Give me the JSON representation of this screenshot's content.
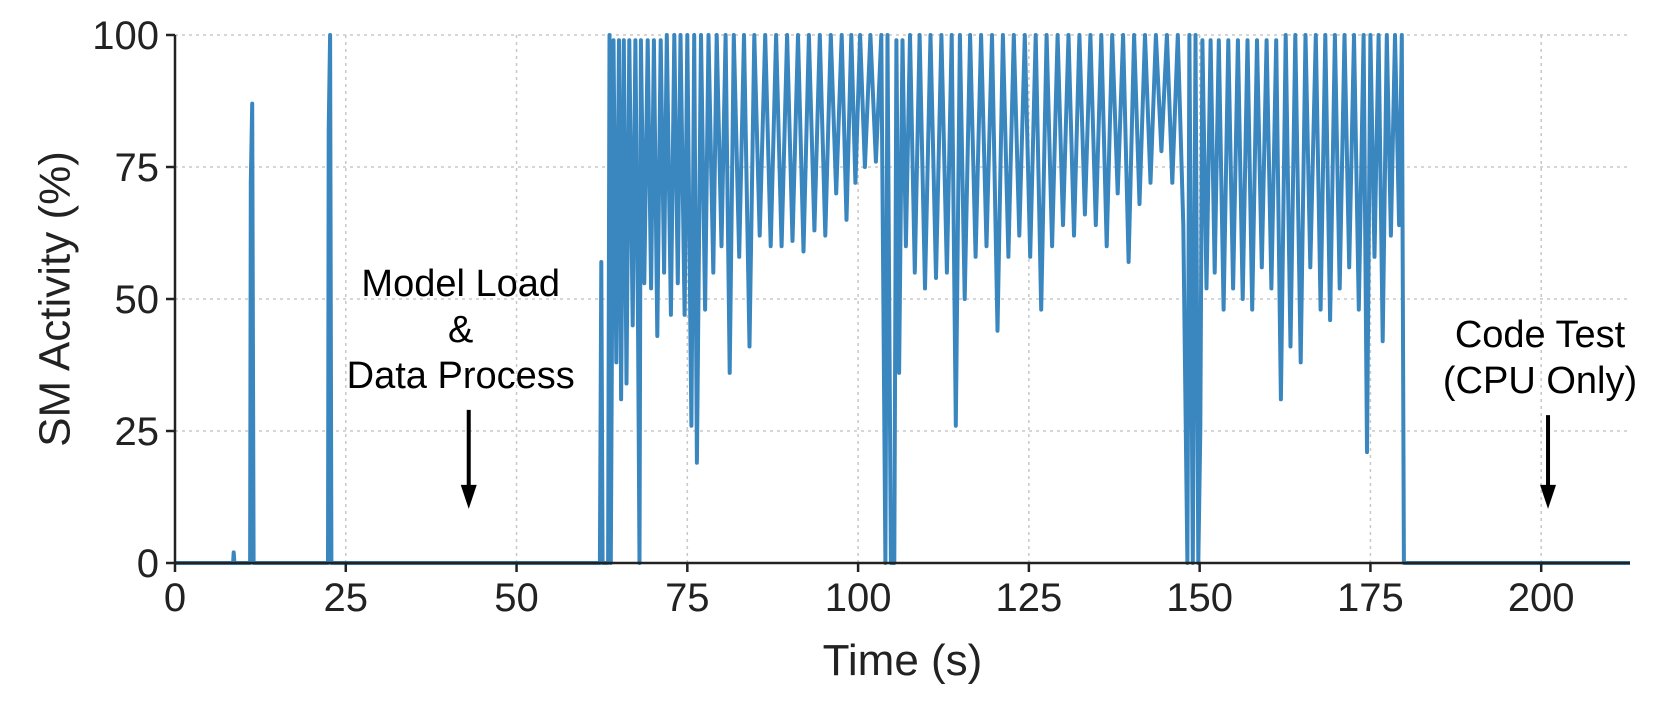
{
  "chart_data": {
    "type": "line",
    "title": "",
    "xlabel": "Time (s)",
    "ylabel": "SM Activity (%)",
    "xlim": [
      0,
      213
    ],
    "ylim": [
      0,
      100
    ],
    "xticks": [
      0,
      25,
      50,
      75,
      100,
      125,
      150,
      175,
      200
    ],
    "yticks": [
      0,
      25,
      50,
      75,
      100
    ],
    "grid": true,
    "color": "#3a86bf",
    "annotations": [
      {
        "lines": [
          "Model Load",
          "&",
          "Data Process"
        ],
        "arrow_x": 43,
        "arrow_from_y": 29,
        "arrow_to_y": 11
      },
      {
        "lines": [
          "Code Test",
          "(CPU Only)"
        ],
        "arrow_x": 201,
        "arrow_from_y": 28,
        "arrow_to_y": 11
      }
    ],
    "series": [
      {
        "name": "",
        "points": [
          [
            0,
            0
          ],
          [
            8.5,
            0
          ],
          [
            8.6,
            2
          ],
          [
            8.7,
            0
          ],
          [
            11.0,
            0
          ],
          [
            11.1,
            72
          ],
          [
            11.3,
            87
          ],
          [
            11.5,
            0
          ],
          [
            22.4,
            0
          ],
          [
            22.5,
            82
          ],
          [
            22.7,
            100
          ],
          [
            22.9,
            0
          ],
          [
            62.2,
            0
          ],
          [
            62.4,
            57
          ],
          [
            62.6,
            0
          ],
          [
            63.4,
            0
          ],
          [
            63.6,
            100
          ],
          [
            63.8,
            0
          ],
          [
            64.2,
            99
          ],
          [
            64.6,
            38
          ],
          [
            65.0,
            99
          ],
          [
            65.3,
            31
          ],
          [
            65.7,
            99
          ],
          [
            66.1,
            34
          ],
          [
            66.5,
            99
          ],
          [
            67.0,
            45
          ],
          [
            67.4,
            99
          ],
          [
            67.8,
            43
          ],
          [
            68.0,
            0
          ],
          [
            68.2,
            99
          ],
          [
            68.7,
            53
          ],
          [
            69.2,
            99
          ],
          [
            69.7,
            52
          ],
          [
            70.1,
            99
          ],
          [
            70.6,
            43
          ],
          [
            71.1,
            99
          ],
          [
            71.6,
            55
          ],
          [
            72.0,
            100
          ],
          [
            72.6,
            47
          ],
          [
            73.1,
            100
          ],
          [
            73.6,
            53
          ],
          [
            74.0,
            100
          ],
          [
            74.6,
            47
          ],
          [
            75.0,
            100
          ],
          [
            75.6,
            26
          ],
          [
            76.0,
            100
          ],
          [
            76.4,
            19
          ],
          [
            77.0,
            100
          ],
          [
            77.6,
            48
          ],
          [
            78.1,
            100
          ],
          [
            78.8,
            55
          ],
          [
            79.3,
            100
          ],
          [
            80.0,
            60
          ],
          [
            80.6,
            100
          ],
          [
            81.2,
            36
          ],
          [
            81.8,
            100
          ],
          [
            82.6,
            58
          ],
          [
            83.3,
            100
          ],
          [
            84.1,
            41
          ],
          [
            84.8,
            100
          ],
          [
            85.6,
            62
          ],
          [
            86.4,
            100
          ],
          [
            87.2,
            60
          ],
          [
            88.0,
            100
          ],
          [
            88.8,
            60
          ],
          [
            89.6,
            100
          ],
          [
            90.4,
            61
          ],
          [
            91.2,
            100
          ],
          [
            92.0,
            59
          ],
          [
            92.8,
            100
          ],
          [
            93.6,
            63
          ],
          [
            94.4,
            100
          ],
          [
            95.2,
            62
          ],
          [
            96.0,
            100
          ],
          [
            96.8,
            70
          ],
          [
            97.6,
            100
          ],
          [
            98.3,
            65
          ],
          [
            99.0,
            100
          ],
          [
            99.6,
            72
          ],
          [
            100.3,
            100
          ],
          [
            101.0,
            75
          ],
          [
            101.8,
            100
          ],
          [
            102.6,
            76
          ],
          [
            103.4,
            100
          ],
          [
            104.0,
            0
          ],
          [
            104.3,
            100
          ],
          [
            104.8,
            0
          ],
          [
            105.3,
            0
          ],
          [
            105.6,
            99
          ],
          [
            106.0,
            36
          ],
          [
            106.5,
            99
          ],
          [
            107.0,
            60
          ],
          [
            107.6,
            100
          ],
          [
            108.3,
            55
          ],
          [
            109.0,
            100
          ],
          [
            109.8,
            52
          ],
          [
            110.6,
            100
          ],
          [
            111.4,
            54
          ],
          [
            112.2,
            100
          ],
          [
            113.0,
            55
          ],
          [
            113.7,
            100
          ],
          [
            114.3,
            26
          ],
          [
            114.9,
            100
          ],
          [
            115.6,
            50
          ],
          [
            116.4,
            100
          ],
          [
            117.2,
            58
          ],
          [
            118.0,
            100
          ],
          [
            118.8,
            60
          ],
          [
            119.6,
            100
          ],
          [
            120.4,
            44
          ],
          [
            121.2,
            100
          ],
          [
            122.0,
            58
          ],
          [
            122.8,
            100
          ],
          [
            123.6,
            62
          ],
          [
            124.4,
            100
          ],
          [
            125.2,
            58
          ],
          [
            126.0,
            100
          ],
          [
            126.8,
            48
          ],
          [
            127.6,
            100
          ],
          [
            128.4,
            60
          ],
          [
            129.2,
            100
          ],
          [
            130.0,
            64
          ],
          [
            130.8,
            100
          ],
          [
            131.6,
            62
          ],
          [
            132.4,
            100
          ],
          [
            133.2,
            66
          ],
          [
            134.0,
            100
          ],
          [
            134.8,
            64
          ],
          [
            135.6,
            100
          ],
          [
            136.4,
            60
          ],
          [
            137.2,
            100
          ],
          [
            138.0,
            70
          ],
          [
            138.8,
            100
          ],
          [
            139.6,
            57
          ],
          [
            140.4,
            100
          ],
          [
            141.2,
            68
          ],
          [
            142.0,
            100
          ],
          [
            142.8,
            72
          ],
          [
            143.6,
            100
          ],
          [
            144.4,
            78
          ],
          [
            145.2,
            100
          ],
          [
            146.0,
            72
          ],
          [
            146.8,
            100
          ],
          [
            147.6,
            64
          ],
          [
            148.2,
            0
          ],
          [
            148.5,
            100
          ],
          [
            149.0,
            0
          ],
          [
            149.4,
            100
          ],
          [
            149.8,
            0
          ],
          [
            150.1,
            25
          ],
          [
            150.4,
            99
          ],
          [
            151.0,
            52
          ],
          [
            151.6,
            99
          ],
          [
            152.2,
            55
          ],
          [
            152.8,
            99
          ],
          [
            153.5,
            48
          ],
          [
            154.2,
            99
          ],
          [
            154.9,
            52
          ],
          [
            155.6,
            99
          ],
          [
            156.3,
            50
          ],
          [
            157.0,
            99
          ],
          [
            157.7,
            48
          ],
          [
            158.4,
            99
          ],
          [
            159.1,
            56
          ],
          [
            159.8,
            99
          ],
          [
            160.5,
            52
          ],
          [
            161.2,
            99
          ],
          [
            161.9,
            31
          ],
          [
            162.6,
            100
          ],
          [
            163.3,
            41
          ],
          [
            164.0,
            100
          ],
          [
            164.8,
            38
          ],
          [
            165.5,
            100
          ],
          [
            166.2,
            56
          ],
          [
            167.0,
            100
          ],
          [
            167.7,
            48
          ],
          [
            168.4,
            100
          ],
          [
            169.1,
            46
          ],
          [
            169.8,
            100
          ],
          [
            170.5,
            52
          ],
          [
            171.2,
            100
          ],
          [
            171.9,
            56
          ],
          [
            172.6,
            100
          ],
          [
            173.3,
            48
          ],
          [
            174.0,
            100
          ],
          [
            174.5,
            21
          ],
          [
            175.0,
            100
          ],
          [
            175.6,
            58
          ],
          [
            176.2,
            100
          ],
          [
            176.8,
            42
          ],
          [
            177.4,
            100
          ],
          [
            178.0,
            62
          ],
          [
            178.6,
            100
          ],
          [
            179.2,
            64
          ],
          [
            179.6,
            100
          ],
          [
            179.9,
            0
          ],
          [
            213,
            0
          ]
        ]
      }
    ]
  }
}
